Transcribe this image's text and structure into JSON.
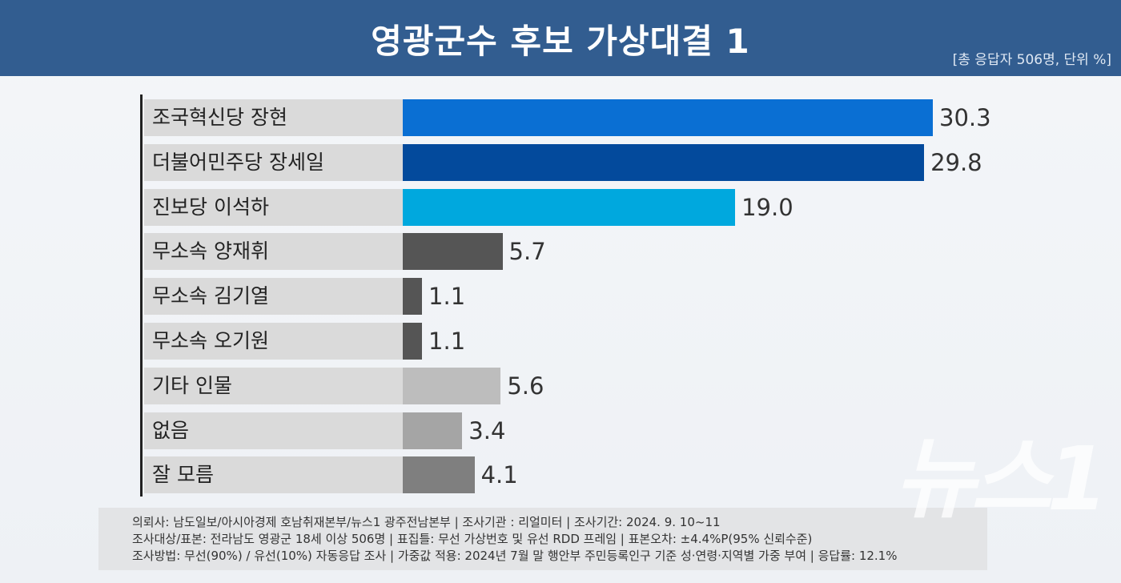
{
  "header": {
    "title": "영광군수 후보 가상대결 1",
    "unit_note": "[총 응답자 506명, 단위 %]"
  },
  "chart_data": {
    "type": "bar",
    "orientation": "horizontal",
    "title": "영광군수 후보 가상대결 1",
    "categories": [
      "조국혁신당 장현",
      "더불어민주당 장세일",
      "진보당 이석하",
      "무소속 양재휘",
      "무소속 김기열",
      "무소속 오기원",
      "기타 인물",
      "없음",
      "잘 모름"
    ],
    "values": [
      30.3,
      29.8,
      19.0,
      5.7,
      1.1,
      1.1,
      5.6,
      3.4,
      4.1
    ],
    "value_labels": [
      "30.3",
      "29.8",
      "19.0",
      "5.7",
      "1.1",
      "1.1",
      "5.6",
      "3.4",
      "4.1"
    ],
    "colors": [
      "#0a6fd3",
      "#034a9c",
      "#00a8de",
      "#555555",
      "#555555",
      "#555555",
      "#bdbdbd",
      "#a5a5a5",
      "#7f7f7f"
    ],
    "xlim": [
      0,
      30.3
    ],
    "grid": false,
    "unit": "%"
  },
  "footer": {
    "lines": [
      "의뢰사: 남도일보/아시아경제 호남취재본부/뉴스1 광주전남본부 | 조사기관 : 리얼미터 | 조사기간: 2024. 9. 10~11",
      "조사대상/표본: 전라남도 영광군 18세 이상 506명 | 표집틀: 무선 가상번호 및 유선 RDD 프레임 | 표본오차: ±4.4%P(95% 신뢰수준)",
      "조사방법: 무선(90%) / 유선(10%) 자동응답 조사 | 가중값 적용: 2024년 7월 말 행안부 주민등록인구 기준 성·연령·지역별 가중 부여 | 응답률: 12.1%"
    ]
  },
  "watermark": "뉴스1"
}
